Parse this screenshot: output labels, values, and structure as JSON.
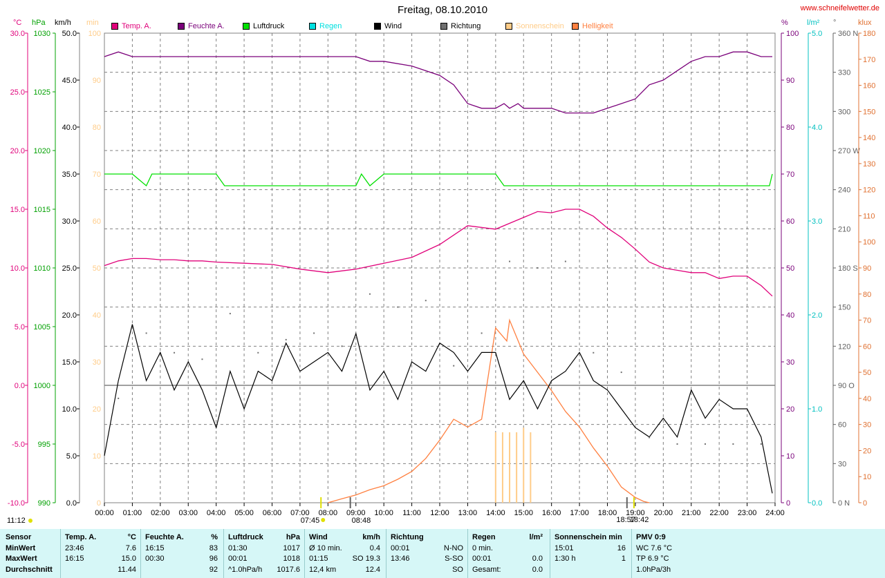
{
  "title": "Freitag, 08.10.2010",
  "website": "www.schneifelwetter.de",
  "legend": [
    {
      "label": "Temp. A.",
      "color": "#e0007a"
    },
    {
      "label": "Feuchte A.",
      "color": "#7a007a"
    },
    {
      "label": "Luftdruck",
      "color": "#00e000"
    },
    {
      "label": "Regen",
      "color": "#00e0e0"
    },
    {
      "label": "Wind",
      "color": "#000000"
    },
    {
      "label": "Richtung",
      "color": "#707070"
    },
    {
      "label": "Sonnenschein",
      "color": "#ffcc88"
    },
    {
      "label": "Helligkeit",
      "color": "#ff8040"
    }
  ],
  "axes": {
    "temp": {
      "unit": "°C",
      "color": "#e0007a",
      "ticks": [
        "30.0",
        "25.0",
        "20.0",
        "15.0",
        "10.0",
        "5.0",
        "0.0",
        "-5.0",
        "-10.0"
      ]
    },
    "pressure": {
      "unit": "hPa",
      "color": "#00a000",
      "ticks": [
        "1030",
        "1025",
        "1020",
        "1015",
        "1010",
        "1005",
        "1000",
        "995",
        "990"
      ]
    },
    "wind": {
      "unit": "km/h",
      "color": "#000000",
      "ticks": [
        "50.0",
        "45.0",
        "40.0",
        "35.0",
        "30.0",
        "25.0",
        "20.0",
        "15.0",
        "10.0",
        "5.0",
        "0.0"
      ]
    },
    "sunmin": {
      "unit": "min",
      "color": "#ffcc88",
      "ticks": [
        "100",
        "90",
        "80",
        "70",
        "60",
        "50",
        "40",
        "30",
        "20",
        "10",
        "0"
      ]
    },
    "humidity": {
      "unit": "%",
      "color": "#7a007a",
      "ticks": [
        "100",
        "90",
        "80",
        "70",
        "60",
        "50",
        "40",
        "30",
        "20",
        "10",
        "0"
      ]
    },
    "rain": {
      "unit": "l/m²",
      "color": "#00c0c0",
      "ticks": [
        "5.0",
        "4.0",
        "3.0",
        "2.0",
        "1.0",
        "0.0"
      ]
    },
    "direction": {
      "unit": "°",
      "color": "#606060",
      "ticks": [
        "360 N",
        "330",
        "300",
        "270 W",
        "240",
        "210",
        "180 S",
        "150",
        "120",
        "90 O",
        "60",
        "30",
        "0 N"
      ]
    },
    "lux": {
      "unit": "klux",
      "color": "#e07030",
      "ticks": [
        "180",
        "170",
        "160",
        "150",
        "140",
        "130",
        "120",
        "110",
        "100",
        "90",
        "80",
        "70",
        "60",
        "50",
        "40",
        "30",
        "20",
        "10",
        "0"
      ]
    }
  },
  "time_ticks": [
    "00:00",
    "01:00",
    "02:00",
    "03:00",
    "04:00",
    "05:00",
    "06:00",
    "07:00",
    "08:00",
    "09:00",
    "10:00",
    "11:00",
    "12:00",
    "13:00",
    "14:00",
    "15:00",
    "16:00",
    "17:00",
    "18:00",
    "19:00",
    "20:00",
    "21:00",
    "22:00",
    "23:00",
    "24:00"
  ],
  "sun_events": {
    "sunrise": "07:45",
    "sunset": "18:57",
    "moonrise": "08:48",
    "moonset": "18:42",
    "daylength": "11:12"
  },
  "chart_data": {
    "type": "line",
    "title": "Freitag, 08.10.2010",
    "x_range": [
      "00:00",
      "24:00"
    ],
    "series": [
      {
        "name": "Temp. A.",
        "unit": "°C",
        "x": [
          0,
          0.5,
          1,
          1.5,
          2,
          2.5,
          3,
          3.5,
          4,
          5,
          6,
          7,
          8,
          9,
          10,
          11,
          12,
          13,
          14,
          14.5,
          15,
          15.5,
          16,
          16.5,
          17,
          17.5,
          18,
          18.5,
          19,
          19.5,
          20,
          20.5,
          21,
          21.5,
          22,
          22.5,
          23,
          23.5,
          23.9
        ],
        "values": [
          10.2,
          10.6,
          10.8,
          10.8,
          10.7,
          10.7,
          10.6,
          10.6,
          10.5,
          10.4,
          10.3,
          9.9,
          9.6,
          9.9,
          10.4,
          10.9,
          12.0,
          13.6,
          13.3,
          13.8,
          14.3,
          14.8,
          14.7,
          15.0,
          15.0,
          14.4,
          13.4,
          12.6,
          11.6,
          10.5,
          10.0,
          9.8,
          9.6,
          9.6,
          9.1,
          9.3,
          9.3,
          8.5,
          7.6
        ]
      },
      {
        "name": "Feuchte A.",
        "unit": "%",
        "x": [
          0,
          0.5,
          1,
          2,
          4,
          6,
          8,
          9,
          9.5,
          10,
          11,
          12,
          12.5,
          13,
          13.5,
          14,
          14.3,
          14.5,
          14.8,
          15,
          15.5,
          16,
          16.5,
          17,
          17.5,
          18,
          19,
          19.5,
          20,
          20.5,
          21,
          21.5,
          22,
          22.5,
          23,
          23.5,
          23.9
        ],
        "values": [
          95,
          96,
          95,
          95,
          95,
          95,
          95,
          95,
          94,
          94,
          93,
          91,
          89,
          85,
          84,
          84,
          85,
          84,
          85,
          84,
          84,
          84,
          83,
          83,
          83,
          84,
          86,
          89,
          90,
          92,
          94,
          95,
          95,
          96,
          96,
          95,
          95
        ]
      },
      {
        "name": "Luftdruck",
        "unit": "hPa",
        "x": [
          0,
          1,
          1.5,
          1.7,
          2,
          4,
          4.3,
          5,
          8,
          9,
          9.2,
          9.5,
          10,
          14,
          14.3,
          15,
          20,
          23,
          23.8,
          23.9
        ],
        "values": [
          1018,
          1018,
          1017,
          1018,
          1018,
          1018,
          1017,
          1017,
          1017,
          1017,
          1018,
          1017,
          1018,
          1018,
          1017,
          1017,
          1017,
          1017,
          1017,
          1018
        ]
      },
      {
        "name": "Wind",
        "unit": "km/h",
        "x": [
          0,
          0.5,
          1,
          1.5,
          2,
          2.5,
          3,
          3.5,
          4,
          4.5,
          5,
          5.5,
          6,
          6.5,
          7,
          7.5,
          8,
          8.5,
          9,
          9.5,
          10,
          10.5,
          11,
          11.5,
          12,
          12.5,
          13,
          13.5,
          14,
          14.5,
          15,
          15.5,
          16,
          16.5,
          17,
          17.5,
          18,
          18.5,
          19,
          19.5,
          20,
          20.5,
          21,
          21.5,
          22,
          22.5,
          23,
          23.5,
          23.9
        ],
        "values": [
          5,
          13,
          19,
          13,
          16,
          12,
          15,
          12,
          8,
          14,
          10,
          14,
          13,
          17,
          14,
          15,
          16,
          14,
          18,
          12,
          14,
          11,
          15,
          14,
          17,
          16,
          14,
          16,
          16,
          11,
          13,
          10,
          13,
          14,
          16,
          13,
          12,
          10,
          8,
          7,
          9,
          7,
          12,
          9,
          11,
          10,
          10,
          7,
          1
        ]
      },
      {
        "name": "Richtung",
        "unit": "°",
        "x": [
          0.5,
          1.5,
          2.5,
          3.5,
          4.5,
          5.5,
          6.5,
          7.5,
          8.5,
          9.5,
          10.5,
          11.5,
          12.5,
          13.5,
          14.5,
          15.5,
          16.5,
          17.5,
          18.5,
          19.5,
          20.5,
          21.5,
          22.5,
          23.5
        ],
        "values": [
          80,
          130,
          115,
          110,
          145,
          115,
          125,
          130,
          120,
          160,
          150,
          155,
          105,
          130,
          185,
          180,
          185,
          115,
          100,
          50,
          45,
          45,
          45,
          45
        ]
      },
      {
        "name": "Helligkeit",
        "unit": "klux",
        "x": [
          8,
          8.5,
          9,
          9.5,
          10,
          10.5,
          11,
          11.5,
          12,
          12.5,
          13,
          13.5,
          14,
          14.4,
          14.5,
          15,
          15.5,
          16,
          16.5,
          17,
          17.5,
          18,
          18.5,
          19,
          19.3,
          19.5
        ],
        "values": [
          0,
          1.5,
          3,
          5,
          6.5,
          9,
          12,
          17,
          24,
          32,
          29,
          32,
          67,
          62,
          70,
          57,
          50,
          43,
          35,
          29,
          21,
          14,
          6,
          2,
          0.5,
          0
        ]
      },
      {
        "name": "Sonnenschein",
        "unit": "min",
        "x": [
          14,
          14.25,
          14.5,
          14.75,
          15,
          15.25
        ],
        "values": [
          15,
          15,
          15,
          15,
          16,
          15
        ]
      }
    ]
  },
  "stats": {
    "columns": [
      {
        "header": [
          "Sensor"
        ],
        "rows": [
          [
            "MinWert"
          ],
          [
            "MaxWert"
          ],
          [
            "Durchschnitt"
          ]
        ]
      },
      {
        "header": [
          "Temp. A.",
          "°C"
        ],
        "rows": [
          [
            "23:46",
            "7.6"
          ],
          [
            "16:15",
            "15.0"
          ],
          [
            "",
            "11.44"
          ]
        ]
      },
      {
        "header": [
          "Feuchte A.",
          "%"
        ],
        "rows": [
          [
            "16:15",
            "83"
          ],
          [
            "00:30",
            "96"
          ],
          [
            "",
            "92"
          ]
        ]
      },
      {
        "header": [
          "Luftdruck",
          "hPa"
        ],
        "rows": [
          [
            "01:30",
            "1017"
          ],
          [
            "00:01",
            "1018"
          ],
          [
            "^1.0hPa/h",
            "1017.6"
          ]
        ]
      },
      {
        "header": [
          "Wind",
          "km/h"
        ],
        "rows": [
          [
            "Ø 10 min.",
            "0.4"
          ],
          [
            "01:15",
            "SO 19.3"
          ],
          [
            "12,4 km",
            "12.4"
          ]
        ]
      },
      {
        "header": [
          "Richtung",
          ""
        ],
        "rows": [
          [
            "00:01",
            "N-NO"
          ],
          [
            "13:46",
            "S-SO"
          ],
          [
            "",
            "SO"
          ]
        ]
      },
      {
        "header": [
          "Regen",
          "l/m²"
        ],
        "rows": [
          [
            "0 min.",
            ""
          ],
          [
            "00:01",
            "0.0"
          ],
          [
            "Gesamt:",
            "0.0"
          ]
        ]
      },
      {
        "header": [
          "Sonnenschein min",
          ""
        ],
        "rows": [
          [
            "",
            ""
          ],
          [
            "15:01",
            "16"
          ],
          [
            "1:30 h",
            "1"
          ]
        ]
      },
      {
        "header": [
          "PMV 0:9"
        ],
        "rows": [
          [
            "WC 7.6 °C"
          ],
          [
            "TP 6.9 °C"
          ],
          [
            "1.0hPa/3h"
          ]
        ]
      }
    ]
  }
}
